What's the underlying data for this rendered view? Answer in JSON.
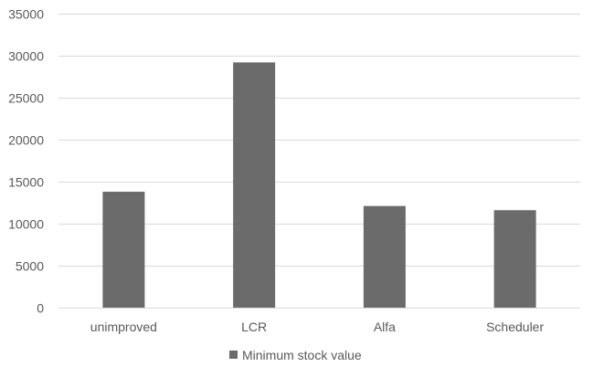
{
  "chart_data": {
    "type": "bar",
    "title": "",
    "xlabel": "",
    "ylabel": "",
    "categories": [
      "unimproved",
      "LCR",
      "Alfa",
      "Scheduler"
    ],
    "series": [
      {
        "name": "Minimum stock value",
        "values": [
          13800,
          29200,
          12100,
          11600
        ],
        "color": "#6b6b6b"
      }
    ],
    "ylim": [
      0,
      35000
    ],
    "yticks": [
      0,
      5000,
      10000,
      15000,
      20000,
      25000,
      30000,
      35000
    ],
    "grid": true,
    "legend_position": "bottom"
  }
}
